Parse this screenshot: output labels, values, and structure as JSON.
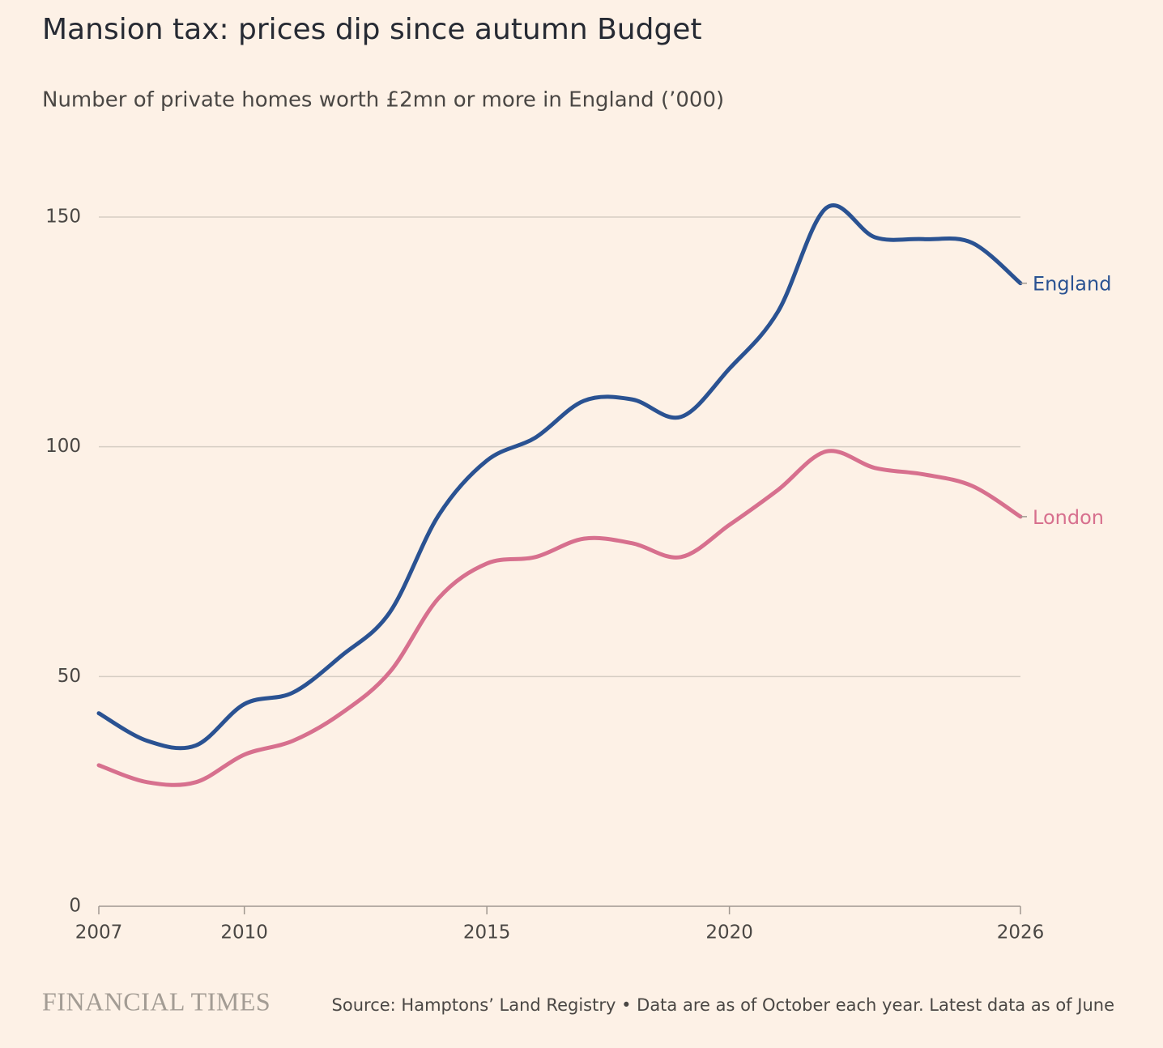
{
  "chart_data": {
    "type": "line",
    "title": "Mansion tax: prices dip since autumn Budget",
    "subtitle": "Number of private homes worth £2mn or more in England (’000)",
    "x": [
      2007,
      2008,
      2009,
      2010,
      2011,
      2012,
      2013,
      2014,
      2015,
      2016,
      2017,
      2018,
      2019,
      2020,
      2021,
      2022,
      2023,
      2024,
      2025,
      2026
    ],
    "series": [
      {
        "name": "England",
        "color": "#2a5292",
        "values": [
          42,
          36,
          35,
          44,
          46.5,
          54.5,
          64,
          85,
          97,
          102,
          110,
          110.3,
          106.5,
          117,
          129.4,
          152,
          145.6,
          145.2,
          144.4,
          135.6
        ]
      },
      {
        "name": "London",
        "color": "#d7708e",
        "values": [
          30.7,
          27,
          27,
          33,
          36,
          42,
          51,
          67,
          74.6,
          76,
          80,
          79,
          76,
          83,
          90.6,
          99,
          95.4,
          94,
          91.5,
          84.8
        ]
      }
    ],
    "xlim": [
      2007,
      2026
    ],
    "xticks": [
      2007,
      2010,
      2015,
      2020,
      2026
    ],
    "ylim": [
      0,
      150
    ],
    "yticks": [
      0,
      50,
      100,
      150
    ],
    "grid": true,
    "source": "Source: Hamptons’ Land Registry • Data are as of October each year. Latest data as of June",
    "brand": "FINANCIAL TIMES"
  }
}
